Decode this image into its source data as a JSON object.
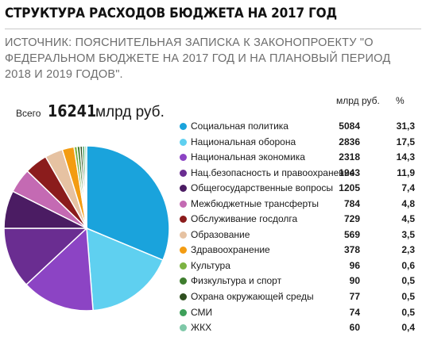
{
  "header": {
    "title": "СТРУКТУРА РАСХОДОВ БЮДЖЕТА НА 2017 ГОД",
    "source": "ИСТОЧНИК: ПОЯСНИТЕЛЬНАЯ ЗАПИСКА К ЗАКОНОПРОЕКТУ \"О ФЕДЕРАЛЬНОМ БЮДЖЕТЕ НА 2017 ГОД И НА ПЛАНОВЫЙ ПЕРИОД 2018 И 2019 ГОДОВ\"."
  },
  "total": {
    "label": "Всего",
    "value": "16241",
    "unit": "млрд руб."
  },
  "columns": {
    "value": "млрд руб.",
    "percent": "%"
  },
  "chart_data": {
    "type": "pie",
    "categories": [
      "Социальная политика",
      "Национальная оборона",
      "Национальная экономика",
      "Нац.безопасность и правоохранение",
      "Общегосударственные вопросы",
      "Межбюджетные трансферты",
      "Обслуживание госдолга",
      "Образование",
      "Здравоохранение",
      "Культура",
      "Физкультура и спорт",
      "Охрана окружающей среды",
      "СМИ",
      "ЖКХ"
    ],
    "values": [
      5084,
      2836,
      2318,
      1943,
      1205,
      784,
      729,
      569,
      378,
      96,
      90,
      77,
      74,
      60
    ],
    "percents": [
      "31,3",
      "17,5",
      "14,3",
      "11,9",
      "7,4",
      "4,8",
      "4,5",
      "3,5",
      "2,3",
      "0,6",
      "0,5",
      "0,5",
      "0,5",
      "0,4"
    ],
    "colors": [
      "#1aa3dc",
      "#5fd0f0",
      "#8c44c4",
      "#6a2d91",
      "#4b1c63",
      "#c46ab3",
      "#8b1c1c",
      "#e6c2a2",
      "#f39c12",
      "#7cb342",
      "#3e7d2e",
      "#2f4f1f",
      "#3ea05a",
      "#7fc8a8"
    ]
  }
}
